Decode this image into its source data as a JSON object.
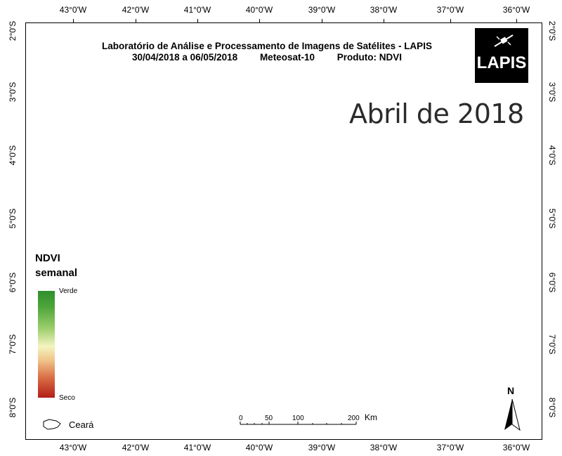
{
  "title": {
    "line1": "Laboratório de Análise e Processamento de Imagens de Satélites - LAPIS",
    "period": "30/04/2018  a 06/05/2018",
    "satellite": "Meteosat-10",
    "product": "Produto: NDVI"
  },
  "logo_text": "LAPIS",
  "overlay_title": "Abril de 2018",
  "legend": {
    "title_line1": "NDVI",
    "title_line2": "semanal",
    "top_label": "Verde",
    "bottom_label": "Seco"
  },
  "state_label": "Ceará",
  "scale": {
    "ticks": [
      "0",
      "50",
      "100",
      "200"
    ],
    "unit": "Km"
  },
  "north_label": "N",
  "longitudes": [
    "43°0'W",
    "42°0'W",
    "41°0'W",
    "40°0'W",
    "39°0'W",
    "38°0'W",
    "37°0'W",
    "36°0'W"
  ],
  "latitudes": [
    "2°0'S",
    "3°0'S",
    "4°0'S",
    "5°0'S",
    "6°0'S",
    "7°0'S",
    "8°0'S"
  ],
  "colors": {
    "vegetation": "#4f9e3c",
    "vegetation_light": "#8fc46a",
    "dry": "#b52a1f",
    "outline": "#111111"
  }
}
